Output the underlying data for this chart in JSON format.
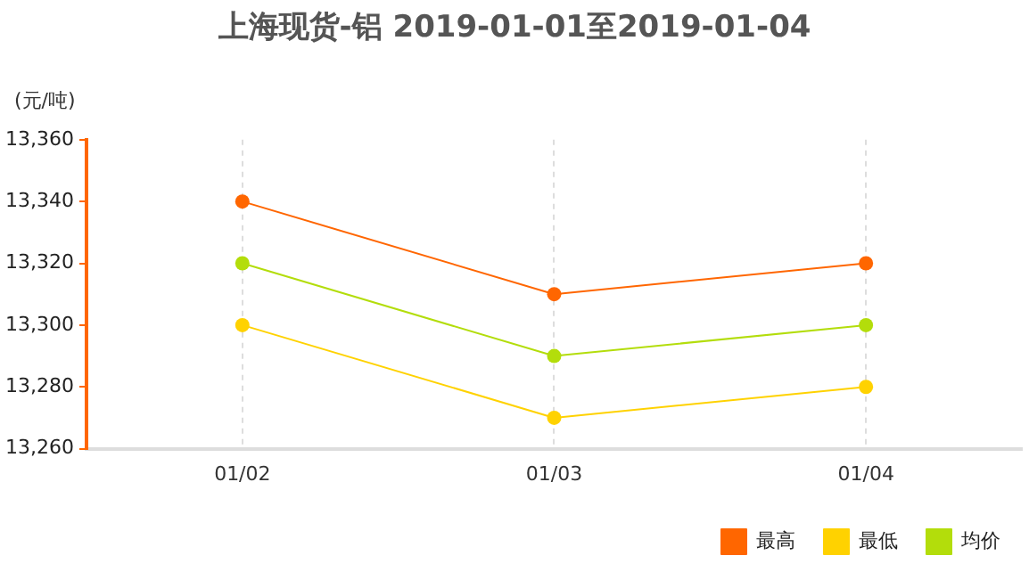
{
  "chart_data": {
    "type": "line",
    "title": "上海现货-铝 2019-01-01至2019-01-04",
    "ylabel": "(元/吨)",
    "categories": [
      "01/02",
      "01/03",
      "01/04"
    ],
    "series": [
      {
        "name": "最高",
        "color": "#ff6600",
        "values": [
          13340,
          13310,
          13320
        ]
      },
      {
        "name": "最低",
        "color": "#ffd200",
        "values": [
          13300,
          13270,
          13280
        ]
      },
      {
        "name": "均价",
        "color": "#b3dd0b",
        "values": [
          13320,
          13290,
          13300
        ]
      }
    ],
    "ylim": [
      13260,
      13360
    ],
    "yticks": [
      {
        "value": 13260,
        "label": "13,260"
      },
      {
        "value": 13280,
        "label": "13,280"
      },
      {
        "value": 13300,
        "label": "13,300"
      },
      {
        "value": 13320,
        "label": "13,320"
      },
      {
        "value": 13340,
        "label": "13,340"
      },
      {
        "value": 13360,
        "label": "13,360"
      }
    ],
    "grid": "x",
    "legend": "bottom right",
    "marker": "circle",
    "line_style": "solid"
  }
}
